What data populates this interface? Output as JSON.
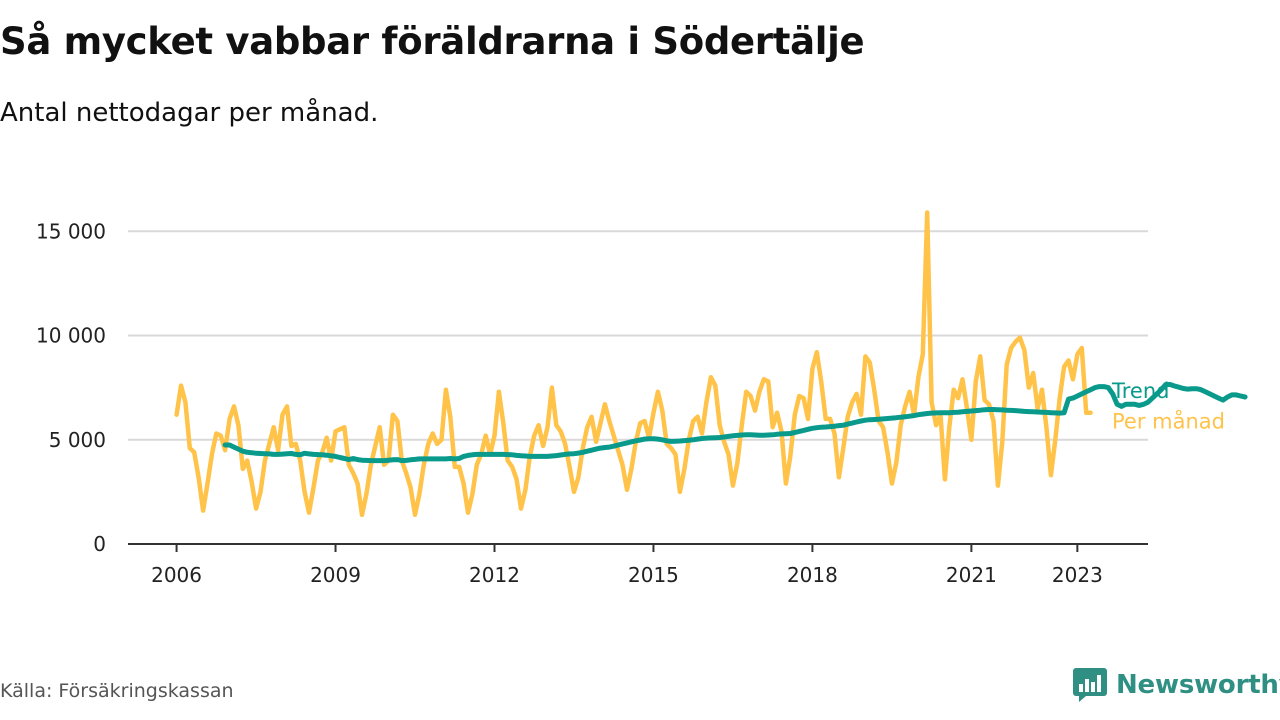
{
  "header": {
    "title": "Så mycket vabbar föräldrarna i Södertälje",
    "subtitle": "Antal nettodagar per månad."
  },
  "footer": {
    "source": "Källa: Försäkringskassan",
    "brand": "Newsworthy",
    "brand_icon": "bar-chart-speech-bubble-icon"
  },
  "colors": {
    "monthly": "#ffc34a",
    "trend": "#0a9a8c",
    "grid": "#d9d9d9",
    "axis": "#333333",
    "brand": "#2f8f83"
  },
  "chart_data": {
    "type": "line",
    "x_unit": "month",
    "start": "2006-01",
    "xlim": [
      "2005-02",
      "2024-05"
    ],
    "ylim": [
      0,
      16500
    ],
    "y_ticks": [
      0,
      5000,
      10000,
      15000
    ],
    "y_tick_labels": [
      "0",
      "5 000",
      "10 000",
      "15 000"
    ],
    "x_ticks": [
      "2006",
      "2009",
      "2012",
      "2015",
      "2018",
      "2021",
      "2023"
    ],
    "grid": "horizontal",
    "legend": "inline-right",
    "series": [
      {
        "name": "Per månad",
        "label": "Per månad",
        "start": "2006-01",
        "values": [
          6200,
          7600,
          6800,
          4600,
          4400,
          3200,
          1600,
          2900,
          4300,
          5300,
          5200,
          4500,
          6000,
          6600,
          5700,
          3600,
          4000,
          3000,
          1700,
          2500,
          4000,
          4800,
          5600,
          4500,
          6200,
          6600,
          4700,
          4800,
          4000,
          2500,
          1500,
          2700,
          4000,
          4400,
          5100,
          4000,
          5400,
          5500,
          5600,
          3800,
          3400,
          2900,
          1400,
          2400,
          3800,
          4700,
          5600,
          3800,
          4000,
          6200,
          5900,
          4000,
          3400,
          2700,
          1400,
          2400,
          3800,
          4800,
          5300,
          4800,
          5000,
          7400,
          6100,
          3700,
          3700,
          2900,
          1500,
          2400,
          3800,
          4300,
          5200,
          4300,
          5200,
          7300,
          5800,
          4000,
          3700,
          3100,
          1700,
          2600,
          4200,
          5200,
          5700,
          4700,
          5600,
          7500,
          5700,
          5400,
          4800,
          3700,
          2500,
          3200,
          4600,
          5600,
          6100,
          4900,
          5800,
          6700,
          5900,
          5200,
          4500,
          3800,
          2600,
          3600,
          4900,
          5800,
          5900,
          5100,
          6300,
          7300,
          6400,
          4800,
          4600,
          4300,
          2500,
          3600,
          5000,
          5900,
          6100,
          5300,
          6800,
          8000,
          7600,
          5700,
          4900,
          4300,
          2800,
          3900,
          5700,
          7300,
          7100,
          6400,
          7300,
          7900,
          7800,
          5600,
          6300,
          5400,
          2900,
          4200,
          6200,
          7100,
          7000,
          6000,
          8400,
          9200,
          7800,
          6000,
          6000,
          5300,
          3200,
          4600,
          6100,
          6800,
          7200,
          6200,
          9000,
          8700,
          7400,
          5900,
          5600,
          4400,
          2900,
          3900,
          5700,
          6600,
          7300,
          6200,
          8000,
          9100,
          15900,
          6800,
          5700,
          6200,
          3100,
          5600,
          7400,
          7000,
          7900,
          6500,
          5000,
          7800,
          9000,
          6900,
          6700,
          5900,
          2800,
          4900,
          8600,
          9400,
          9700,
          9900,
          9300,
          7500,
          8200,
          6500,
          7400,
          5600,
          3300,
          5000,
          7000,
          8500,
          8800,
          7900,
          9100,
          9400,
          6300,
          6300
        ]
      },
      {
        "name": "Trend",
        "label": "Trend",
        "start": "2006-12",
        "values": [
          4750,
          4750,
          4650,
          4550,
          4450,
          4400,
          4380,
          4350,
          4340,
          4330,
          4320,
          4300,
          4300,
          4310,
          4330,
          4340,
          4300,
          4280,
          4350,
          4320,
          4300,
          4290,
          4280,
          4260,
          4230,
          4200,
          4150,
          4100,
          4050,
          4100,
          4050,
          4020,
          4010,
          4000,
          4000,
          4000,
          4000,
          4020,
          4040,
          4050,
          4000,
          4010,
          4040,
          4060,
          4080,
          4080,
          4080,
          4080,
          4080,
          4080,
          4080,
          4100,
          4080,
          4100,
          4200,
          4250,
          4280,
          4300,
          4300,
          4300,
          4300,
          4300,
          4300,
          4300,
          4290,
          4280,
          4250,
          4230,
          4220,
          4200,
          4200,
          4200,
          4200,
          4200,
          4220,
          4240,
          4270,
          4300,
          4320,
          4330,
          4360,
          4400,
          4450,
          4500,
          4550,
          4600,
          4630,
          4650,
          4690,
          4750,
          4800,
          4850,
          4900,
          4950,
          4990,
          5030,
          5050,
          5050,
          5030,
          5000,
          4950,
          4920,
          4930,
          4940,
          4960,
          4980,
          5000,
          5030,
          5060,
          5080,
          5090,
          5100,
          5110,
          5130,
          5160,
          5190,
          5210,
          5230,
          5240,
          5240,
          5230,
          5220,
          5220,
          5230,
          5240,
          5260,
          5280,
          5290,
          5300,
          5350,
          5400,
          5450,
          5500,
          5550,
          5580,
          5600,
          5610,
          5630,
          5650,
          5680,
          5700,
          5750,
          5800,
          5850,
          5900,
          5940,
          5960,
          5970,
          5980,
          6000,
          6020,
          6040,
          6060,
          6080,
          6100,
          6130,
          6160,
          6200,
          6230,
          6260,
          6280,
          6290,
          6300,
          6300,
          6300,
          6310,
          6320,
          6340,
          6360,
          6380,
          6400,
          6420,
          6440,
          6450,
          6450,
          6440,
          6430,
          6420,
          6410,
          6400,
          6380,
          6360,
          6350,
          6340,
          6330,
          6320,
          6310,
          6300,
          6290,
          6280,
          6300,
          6950,
          7000,
          7100,
          7200,
          7300,
          7400,
          7500,
          7550,
          7550,
          7500,
          7200,
          6700,
          6600,
          6700,
          6700,
          6700,
          6650,
          6700,
          6800,
          7000,
          7200,
          7400,
          7650,
          7650,
          7580,
          7520,
          7460,
          7430,
          7450,
          7450,
          7400,
          7300,
          7200,
          7100,
          7000,
          6900,
          7050,
          7150,
          7150,
          7100,
          7050
        ]
      }
    ]
  }
}
